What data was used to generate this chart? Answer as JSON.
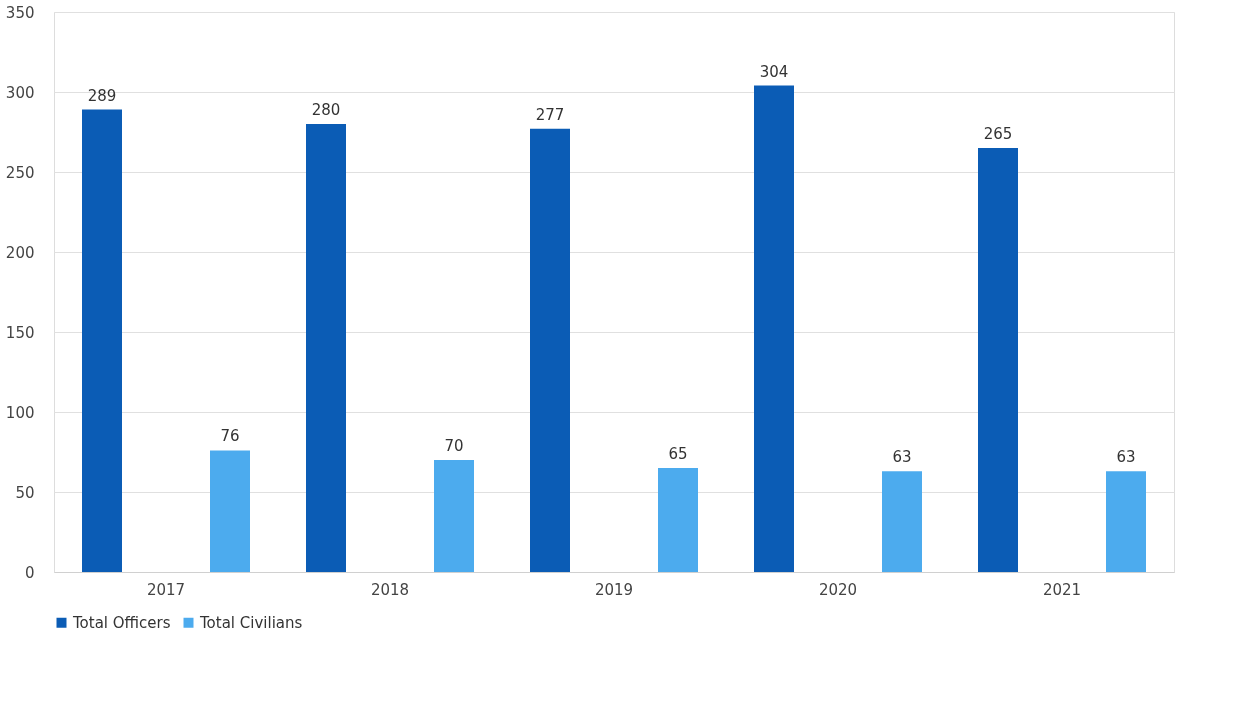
{
  "chart_data": {
    "type": "bar",
    "categories": [
      "2017",
      "2018",
      "2019",
      "2020",
      "2021"
    ],
    "series": [
      {
        "name": "Total Officers",
        "color": "#0b5cb5",
        "values": [
          289,
          280,
          277,
          304,
          265
        ]
      },
      {
        "name": "Total Civilians",
        "color": "#4cabee",
        "values": [
          76,
          70,
          65,
          63,
          63
        ]
      }
    ],
    "ylim": [
      0,
      350
    ],
    "yticks": [
      0,
      50,
      100,
      150,
      200,
      250,
      300,
      350
    ],
    "grid": "y",
    "legend": "bottom",
    "data_labels": true
  }
}
